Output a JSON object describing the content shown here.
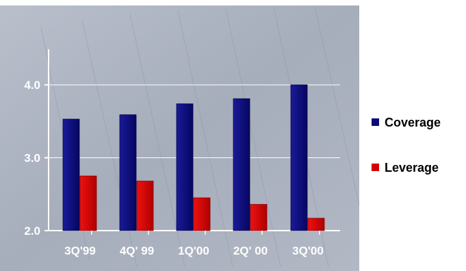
{
  "chart_data": {
    "type": "bar",
    "title": "",
    "xlabel": "",
    "ylabel": "",
    "categories": [
      "3Q'99",
      "4Q' 99",
      "1Q'00",
      "2Q' 00",
      "3Q'00"
    ],
    "series": [
      {
        "name": "Coverage",
        "values": [
          3.53,
          3.59,
          3.74,
          3.81,
          4.0
        ],
        "color": "#0a0a7a"
      },
      {
        "name": "Leverage",
        "values": [
          2.75,
          2.68,
          2.45,
          2.36,
          2.17
        ],
        "color": "#d40000"
      }
    ],
    "ylim": [
      2.0,
      4.5
    ],
    "yticks": [
      "2.0",
      "3.0",
      "4.0"
    ],
    "ytick_values": [
      2.0,
      3.0,
      4.0
    ],
    "grid": true,
    "legend_position": "right",
    "background": "grey financial-ticker photo"
  }
}
